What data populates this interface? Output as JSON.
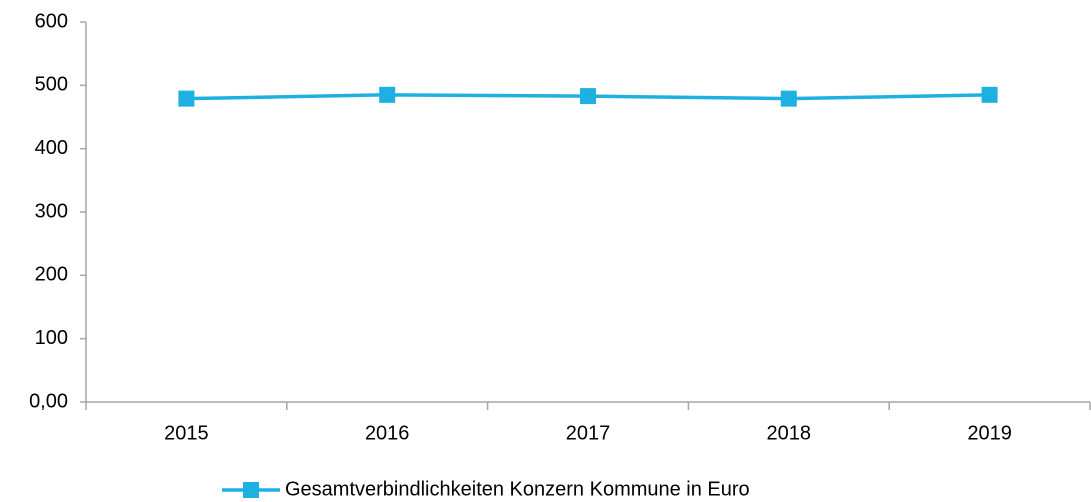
{
  "chart_data": {
    "type": "line",
    "categories": [
      "2015",
      "2016",
      "2017",
      "2018",
      "2019"
    ],
    "series": [
      {
        "name": "Gesamtverbindlichkeiten Konzern Kommune in Euro",
        "color": "#1fb0e2",
        "values": [
          479,
          485,
          483,
          479,
          485
        ]
      }
    ],
    "ylim": [
      0,
      600
    ],
    "yticks": [
      {
        "value": 0,
        "label": "0,00"
      },
      100,
      200,
      300,
      400,
      500,
      600
    ],
    "grid": false,
    "legend": "bottom"
  }
}
